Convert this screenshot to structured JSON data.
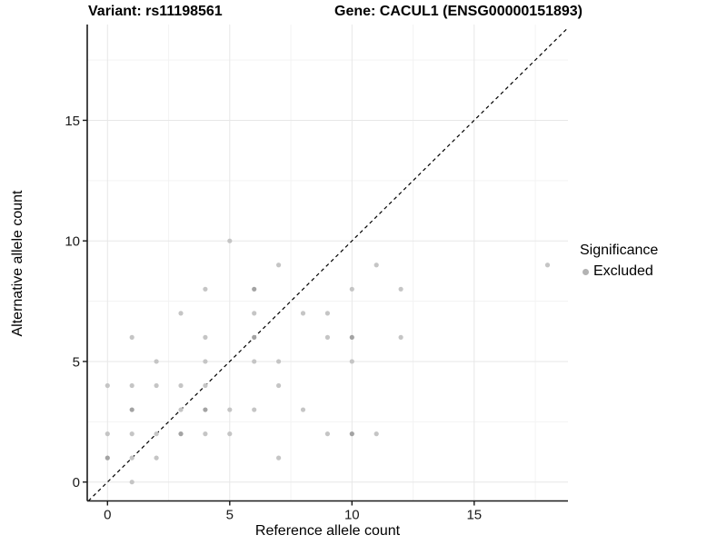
{
  "chart_data": {
    "type": "scatter",
    "title_left": "Variant: rs11198561",
    "title_right": "Gene: CACUL1 (ENSG00000151893)",
    "xlabel": "Reference allele count",
    "ylabel": "Alternative allele count",
    "xlim": [
      -0.9,
      18.9
    ],
    "ylim": [
      -0.8,
      18.9
    ],
    "x_ticks": [
      0,
      5,
      10,
      15
    ],
    "y_ticks": [
      0,
      5,
      10,
      15
    ],
    "x_minor": [
      2.5,
      7.5,
      12.5,
      17.5
    ],
    "y_minor": [
      2.5,
      7.5,
      12.5,
      17.5
    ],
    "grid": true,
    "identity_line": {
      "style": "dashed",
      "slope": 1,
      "intercept": 0
    },
    "legend": {
      "position": "right",
      "title": "Significance",
      "items": [
        {
          "label": "Excluded",
          "color": "#b3b3b3"
        }
      ]
    },
    "series": [
      {
        "name": "Excluded",
        "points": [
          [
            1,
            0,
            1
          ],
          [
            0,
            1,
            2
          ],
          [
            1,
            1,
            1
          ],
          [
            2,
            1,
            1
          ],
          [
            7,
            1,
            1
          ],
          [
            0,
            2,
            1
          ],
          [
            1,
            2,
            1
          ],
          [
            2,
            2,
            1
          ],
          [
            3,
            2,
            2
          ],
          [
            4,
            2,
            1
          ],
          [
            5,
            2,
            1
          ],
          [
            9,
            2,
            1
          ],
          [
            10,
            2,
            2
          ],
          [
            11,
            2,
            1
          ],
          [
            1,
            3,
            2
          ],
          [
            3,
            3,
            1
          ],
          [
            4,
            3,
            2
          ],
          [
            5,
            3,
            1
          ],
          [
            6,
            3,
            1
          ],
          [
            8,
            3,
            1
          ],
          [
            0,
            4,
            1
          ],
          [
            1,
            4,
            1
          ],
          [
            2,
            4,
            1
          ],
          [
            3,
            4,
            1
          ],
          [
            4,
            4,
            1
          ],
          [
            7,
            4,
            1
          ],
          [
            2,
            5,
            1
          ],
          [
            4,
            5,
            1
          ],
          [
            6,
            5,
            1
          ],
          [
            7,
            5,
            1
          ],
          [
            10,
            5,
            1
          ],
          [
            1,
            6,
            1
          ],
          [
            4,
            6,
            1
          ],
          [
            6,
            6,
            2
          ],
          [
            9,
            6,
            1
          ],
          [
            10,
            6,
            2
          ],
          [
            12,
            6,
            1
          ],
          [
            3,
            7,
            1
          ],
          [
            6,
            7,
            1
          ],
          [
            8,
            7,
            1
          ],
          [
            9,
            7,
            1
          ],
          [
            4,
            8,
            1
          ],
          [
            6,
            8,
            2
          ],
          [
            10,
            8,
            1
          ],
          [
            12,
            8,
            1
          ],
          [
            7,
            9,
            1
          ],
          [
            11,
            9,
            1
          ],
          [
            18,
            9,
            1
          ],
          [
            5,
            10,
            1
          ]
        ]
      }
    ],
    "colors": {
      "point": "#c5c5c5",
      "point_overlap": "#a3a3a3",
      "grid_major": "#e7e7e7",
      "grid_minor": "#f3f3f3",
      "axis": "#1a1a1a",
      "tick_label": "#1a1a1a",
      "identity_line": "#000000"
    }
  }
}
